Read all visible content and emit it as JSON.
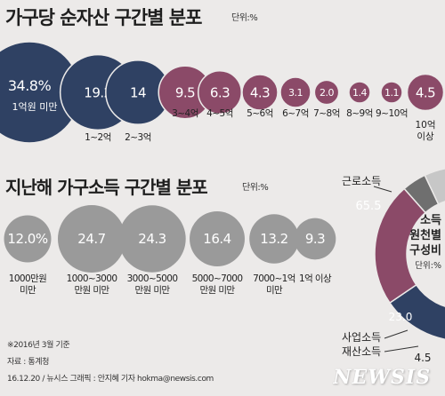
{
  "chart_data": [
    {
      "type": "bubble",
      "title": "가구당 순자산 구간별 분포",
      "unit": "단위:%",
      "categories": [
        "1억원 미만",
        "1~2억",
        "2~3억",
        "3~4억",
        "4~5억",
        "5~6억",
        "6~7억",
        "7~8억",
        "8~9억",
        "9~10억",
        "10억 이상"
      ],
      "values": [
        34.8,
        19.2,
        14,
        9.5,
        6.3,
        4.3,
        3.1,
        2.0,
        1.4,
        1.1,
        4.5
      ],
      "value_labels": [
        "34.8%",
        "19.2",
        "14",
        "9.5",
        "6.3",
        "4.3",
        "3.1",
        "2.0",
        "1.4",
        "1.1",
        "4.5"
      ],
      "colors": [
        "#2f4163",
        "#2f4163",
        "#2f4163",
        "#8b4a68",
        "#8b4a68",
        "#8b4a68",
        "#8b4a68",
        "#8b4a68",
        "#8b4a68",
        "#8b4a68",
        "#8b4a68"
      ]
    },
    {
      "type": "bubble",
      "title": "지난해 가구소득 구간별 분포",
      "unit": "단위:%",
      "categories": [
        "1000만원 미만",
        "1000~3000 만원 미만",
        "3000~5000 만원 미만",
        "5000~7000 만원 미만",
        "7000~1억 미만",
        "1억 이상"
      ],
      "category_lines": [
        [
          "1000만원",
          "미만"
        ],
        [
          "1000~3000",
          "만원 미만"
        ],
        [
          "3000~5000",
          "만원 미만"
        ],
        [
          "5000~7000",
          "만원 미만"
        ],
        [
          "7000~1억",
          "미만"
        ],
        [
          "1억 이상"
        ]
      ],
      "values": [
        12.0,
        24.7,
        24.3,
        16.4,
        13.2,
        9.3
      ],
      "value_labels": [
        "12.0%",
        "24.7",
        "24.3",
        "16.4",
        "13.2",
        "9.3"
      ],
      "color": "#9a9a9a"
    },
    {
      "type": "pie",
      "title_lines": [
        "소득",
        "원천별",
        "구성비"
      ],
      "unit": "단위:%",
      "categories": [
        "근로소득",
        "사업소득",
        "재산소득"
      ],
      "values": [
        65.5,
        23.0,
        4.5
      ],
      "value_labels": [
        "65.5",
        "23.0",
        "4.5"
      ],
      "colors": [
        "#2f4163",
        "#8b4a68",
        "#6f6f6f"
      ],
      "other_color": "#c7c7c7"
    }
  ],
  "footer": {
    "note": "※2016년 3월 기준",
    "source": "자료 : 통계청",
    "credit": "16.12.20 / 뉴시스 그래픽 : 안지혜 기자 hokma@newsis.com",
    "logo": "NEWSIS"
  }
}
